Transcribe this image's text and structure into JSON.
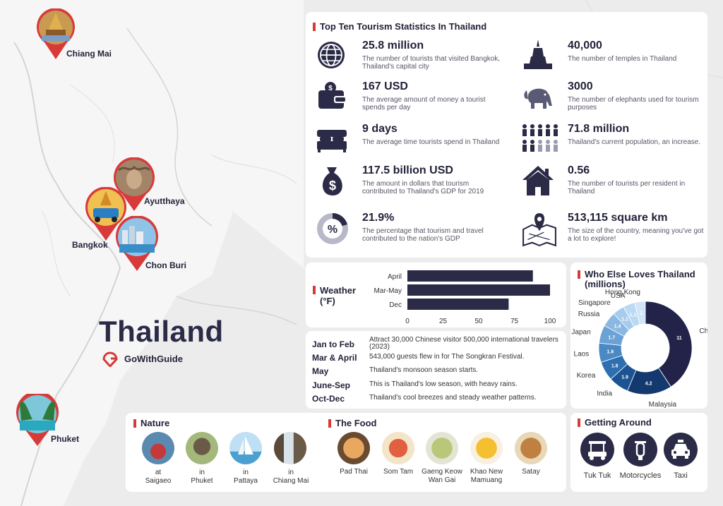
{
  "page": {
    "title": "Thailand",
    "brand": "GoWithGuide"
  },
  "colors": {
    "navy": "#2b2b48",
    "red": "#d83a3a"
  },
  "map_pins": [
    {
      "label": "Chiang Mai",
      "icon": "temple-photo"
    },
    {
      "label": "Ayutthaya",
      "icon": "buddha-head-photo"
    },
    {
      "label": "Bangkok",
      "icon": "tuk-tuk-photo"
    },
    {
      "label": "Chon Buri",
      "icon": "beach-city-photo"
    },
    {
      "label": "Phuket",
      "icon": "island-bay-photo"
    }
  ],
  "stats": {
    "title": "Top Ten Tourism Statistics In Thailand",
    "items": [
      {
        "value": "25.8 million",
        "desc": "The number of tourists that visited Bangkok, Thailand's capital city",
        "icon": "globe-icon"
      },
      {
        "value": "40,000",
        "desc": "The number of temples in Thailand",
        "icon": "temple-icon"
      },
      {
        "value": "167 USD",
        "desc": "The average amount of money a tourist spends per day",
        "icon": "wallet-icon"
      },
      {
        "value": "3000",
        "desc": "The number of elephants used for tourism purposes",
        "icon": "elephant-icon"
      },
      {
        "value": "9 days",
        "desc": "The average time tourists spend in Thailand",
        "icon": "bed-icon"
      },
      {
        "value": "71.8 million",
        "desc": "Thailand's current population, an increase.",
        "icon": "people-icon"
      },
      {
        "value": "117.5 billion USD",
        "desc": "The amount in dollars that tourism contributed to Thailand's GDP for 2019",
        "icon": "money-bag-icon"
      },
      {
        "value": "0.56",
        "desc": "The number of tourists per resident in Thailand",
        "icon": "house-icon"
      },
      {
        "value": "21.9%",
        "desc": "The percentage that tourism and travel contributed to the nation's GDP",
        "icon": "percent-icon"
      },
      {
        "value": "513,115 square km",
        "desc": "The size of the country, meaning you've got a lot to explore!",
        "icon": "map-pin-icon"
      }
    ]
  },
  "weather": {
    "title": "Weather (°F)",
    "timeline": [
      {
        "period": "Jan to Feb",
        "text": "Attract 30,000 Chinese visitor 500,000 international travelers (2023)"
      },
      {
        "period": "Mar & April",
        "text": "543,000 guests flew in for The Songkran Festival."
      },
      {
        "period": "May",
        "text": "Thailand's monsoon season starts."
      },
      {
        "period": "June-Sep",
        "text": "This is Thailand's low season, with heavy rains."
      },
      {
        "period": "Oct-Dec",
        "text": "Thailand's cool breezes and steady weather patterns."
      }
    ]
  },
  "who_loves": {
    "title": "Who Else Loves Thailand (millions)"
  },
  "chart_data": [
    {
      "type": "bar",
      "orientation": "horizontal",
      "title": "Weather (°F)",
      "categories": [
        "April",
        "Mar-May",
        "Dec"
      ],
      "values": [
        88,
        100,
        71
      ],
      "xlim": [
        0,
        100
      ],
      "xticks": [
        "0",
        "25",
        "50",
        "75",
        "100"
      ],
      "color": "#2b2b48"
    },
    {
      "type": "pie",
      "title": "Who Else Loves Thailand (millions)",
      "donut": true,
      "categories": [
        "China",
        "Malaysia",
        "India",
        "Korea",
        "Laos",
        "Japan",
        "Russia",
        "Singapore",
        "USA",
        "Hong Kong"
      ],
      "values": [
        11,
        4.2,
        1.9,
        1.8,
        1.8,
        1.7,
        1.4,
        1.1,
        1.1,
        1
      ],
      "value_labels": [
        "11",
        "4.2",
        "1.9",
        "1.8",
        "1.8",
        "1.7",
        "1.4",
        "1.1",
        "1.1",
        "1"
      ],
      "colors": [
        "#23234a",
        "#13396e",
        "#1b5393",
        "#2d6fb0",
        "#4a88c6",
        "#6aa2d6",
        "#8ab8e2",
        "#a6cbec",
        "#bcd9f3",
        "#d0e5f8"
      ]
    }
  ],
  "nature": {
    "title": "Nature",
    "items": [
      {
        "l1": "at",
        "l2": "Saigaeo",
        "icon": "jet-ski-photo"
      },
      {
        "l1": "in",
        "l2": "Phuket",
        "icon": "elephant-ride-photo"
      },
      {
        "l1": "in",
        "l2": "Pattaya",
        "icon": "sailboat-photo"
      },
      {
        "l1": "in",
        "l2": "Chiang Mai",
        "icon": "waterfall-photo"
      }
    ]
  },
  "food": {
    "title": "The Food",
    "items": [
      {
        "l1": "Pad Thai",
        "l2": "",
        "icon": "pad-thai-photo"
      },
      {
        "l1": "Som Tam",
        "l2": "",
        "icon": "som-tam-photo"
      },
      {
        "l1": "Gaeng Keow",
        "l2": "Wan Gai",
        "icon": "green-curry-photo"
      },
      {
        "l1": "Khao New",
        "l2": "Mamuang",
        "icon": "mango-rice-photo"
      },
      {
        "l1": "Satay",
        "l2": "",
        "icon": "satay-photo"
      }
    ]
  },
  "getting_around": {
    "title": "Getting Around",
    "items": [
      {
        "label": "Tuk Tuk",
        "icon": "tuk-tuk-icon"
      },
      {
        "label": "Motorcycles",
        "icon": "motorcycle-icon"
      },
      {
        "label": "Taxi",
        "icon": "taxi-icon"
      }
    ]
  }
}
